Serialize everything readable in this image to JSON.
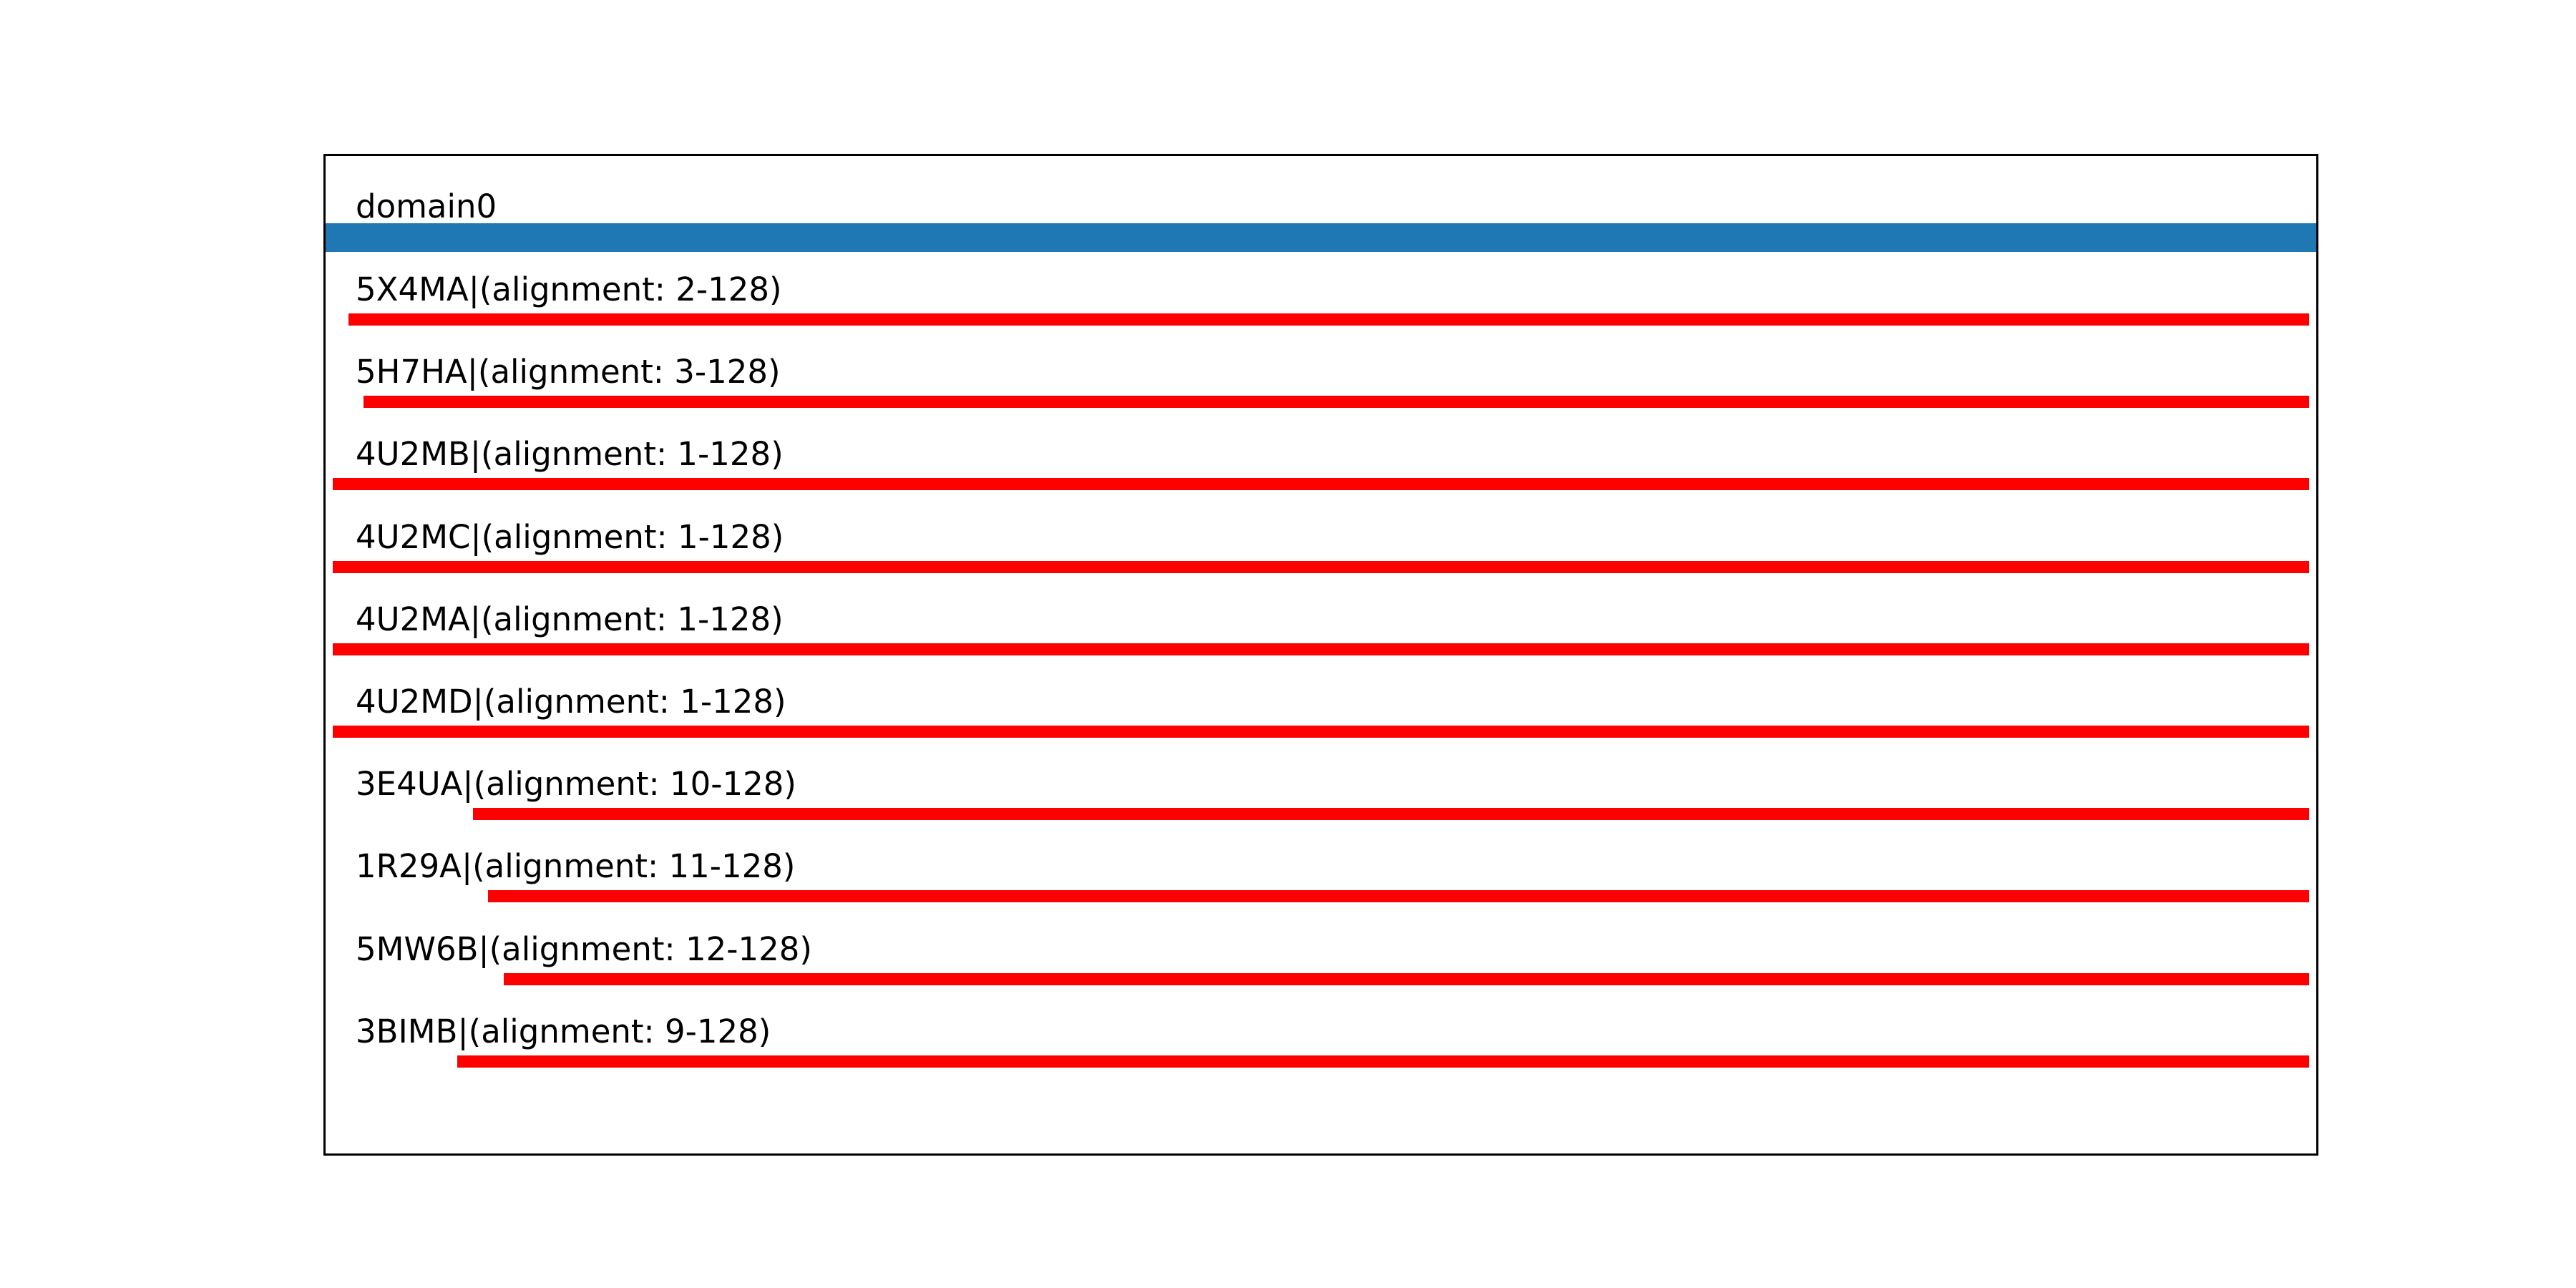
{
  "chart_data": {
    "type": "bar",
    "subtype": "horizontal-range-tracks",
    "title": "",
    "xlabel": "",
    "ylabel": "",
    "x_domain": [
      1,
      128
    ],
    "grid": false,
    "legend": false,
    "domain_track": {
      "label": "domain0",
      "start": 1,
      "end": 128,
      "spans_full_axis": true,
      "color": "#1f77b4"
    },
    "alignment_color": "#ff0000",
    "alignments": [
      {
        "label": "5X4MA|(alignment: 2-128)",
        "id": "5X4MA",
        "start": 2,
        "end": 128
      },
      {
        "label": "5H7HA|(alignment: 3-128)",
        "id": "5H7HA",
        "start": 3,
        "end": 128
      },
      {
        "label": "4U2MB|(alignment: 1-128)",
        "id": "4U2MB",
        "start": 1,
        "end": 128
      },
      {
        "label": "4U2MC|(alignment: 1-128)",
        "id": "4U2MC",
        "start": 1,
        "end": 128
      },
      {
        "label": "4U2MA|(alignment: 1-128)",
        "id": "4U2MA",
        "start": 1,
        "end": 128
      },
      {
        "label": "4U2MD|(alignment: 1-128)",
        "id": "4U2MD",
        "start": 1,
        "end": 128
      },
      {
        "label": "3E4UA|(alignment: 10-128)",
        "id": "3E4UA",
        "start": 10,
        "end": 128
      },
      {
        "label": "1R29A|(alignment: 11-128)",
        "id": "1R29A",
        "start": 11,
        "end": 128
      },
      {
        "label": "5MW6B|(alignment: 12-128)",
        "id": "5MW6B",
        "start": 12,
        "end": 128
      },
      {
        "label": "3BIMB|(alignment: 9-128)",
        "id": "3BIMB",
        "start": 9,
        "end": 128
      }
    ],
    "colors": {
      "background": "#ffffff",
      "plot_border": "#000000",
      "text": "#000000",
      "domain_bar": "#1f77b4",
      "alignment_bar": "#ff0000"
    }
  }
}
